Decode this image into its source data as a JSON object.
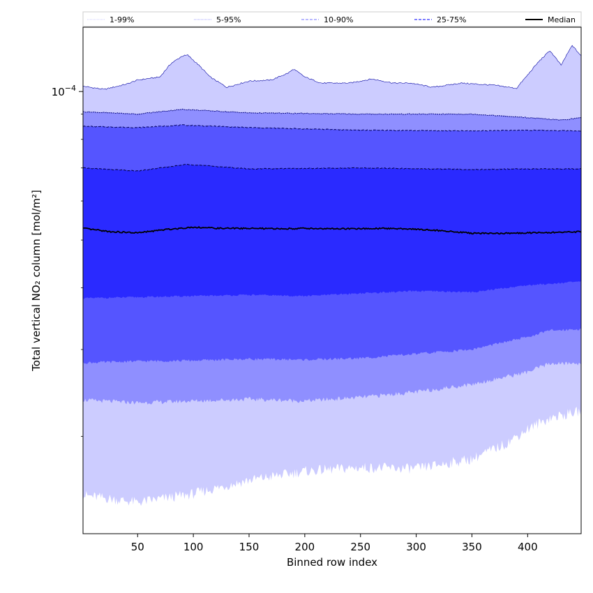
{
  "chart_data": {
    "type": "area",
    "xlabel": "Binned row index",
    "ylabel": "Total vertical NO₂ column [mol/m²]",
    "y_scale": "log",
    "xlim": [
      1,
      448
    ],
    "ylim": [
      1.27e-05,
      0.000135
    ],
    "x_ticks": [
      50,
      100,
      150,
      200,
      250,
      300,
      350,
      400
    ],
    "y_tick_label": {
      "base": "10",
      "exponent": "−4",
      "value": 0.0001
    },
    "grid": false,
    "legend_position": "top, spanning width",
    "colors": {
      "band_1_99": "#ccccff",
      "band_5_95": "#8f8fff",
      "band_10_90": "#5555ff",
      "band_25_75": "#2a2aff",
      "median": "#000000",
      "p99_line": "#0000a0",
      "p95_line": "#000080",
      "p90_line": "#000060",
      "p75_line": "#000040"
    },
    "legend": [
      {
        "label": "1-99%",
        "style": "dotted-light"
      },
      {
        "label": "5-95%",
        "style": "dotted"
      },
      {
        "label": "10-90%",
        "style": "dashed-light"
      },
      {
        "label": "25-75%",
        "style": "dashed"
      },
      {
        "label": "Median",
        "style": "solid"
      }
    ],
    "series": [
      {
        "name": "1-99%",
        "lower_x": [
          1,
          50,
          100,
          150,
          200,
          250,
          300,
          350,
          380,
          400,
          420,
          448
        ],
        "lower_y": [
          1.52e-05,
          1.47e-05,
          1.53e-05,
          1.63e-05,
          1.7e-05,
          1.73e-05,
          1.72e-05,
          1.8e-05,
          1.93e-05,
          2.07e-05,
          2.18e-05,
          2.25e-05
        ],
        "upper_x": [
          1,
          20,
          40,
          50,
          70,
          80,
          90,
          95,
          105,
          115,
          130,
          150,
          170,
          185,
          190,
          200,
          215,
          240,
          260,
          280,
          295,
          315,
          340,
          370,
          390,
          400,
          410,
          420,
          430,
          440,
          448
        ],
        "upper_y": [
          0.0001025,
          0.000101,
          0.0001035,
          0.0001055,
          0.000107,
          0.000114,
          0.000118,
          0.0001185,
          0.000113,
          0.000107,
          0.000102,
          0.000105,
          0.0001055,
          0.000109,
          0.000111,
          0.000107,
          0.000104,
          0.000104,
          0.000106,
          0.000104,
          0.000104,
          0.000102,
          0.000104,
          0.000103,
          0.0001015,
          0.000108,
          0.000115,
          0.000121,
          0.000113,
          0.000124,
          0.000118
        ]
      },
      {
        "name": "5-95%",
        "lower_x": [
          1,
          50,
          100,
          150,
          200,
          250,
          300,
          350,
          400,
          420,
          448
        ],
        "lower_y": [
          2.37e-05,
          2.34e-05,
          2.36e-05,
          2.38e-05,
          2.36e-05,
          2.4e-05,
          2.46e-05,
          2.55e-05,
          2.7e-05,
          2.81e-05,
          2.81e-05
        ],
        "upper_x": [
          1,
          50,
          90,
          150,
          250,
          350,
          400,
          430,
          448
        ],
        "upper_y": [
          9.1e-05,
          9e-05,
          9.2e-05,
          9.05e-05,
          9e-05,
          9e-05,
          8.85e-05,
          8.75e-05,
          8.85e-05
        ]
      },
      {
        "name": "10-90%",
        "lower_x": [
          1,
          50,
          100,
          150,
          200,
          250,
          300,
          350,
          400,
          420,
          448
        ],
        "lower_y": [
          2.82e-05,
          2.84e-05,
          2.85e-05,
          2.87e-05,
          2.86e-05,
          2.88e-05,
          2.94e-05,
          3e-05,
          3.18e-05,
          3.28e-05,
          3.3e-05
        ],
        "upper_x": [
          1,
          50,
          90,
          150,
          250,
          350,
          400,
          448
        ],
        "upper_y": [
          8.5e-05,
          8.45e-05,
          8.55e-05,
          8.45e-05,
          8.35e-05,
          8.32e-05,
          8.35e-05,
          8.32e-05
        ]
      },
      {
        "name": "25-75%",
        "lower_x": [
          1,
          50,
          100,
          150,
          200,
          250,
          300,
          350,
          400,
          448
        ],
        "lower_y": [
          3.81e-05,
          3.83e-05,
          3.85e-05,
          3.87e-05,
          3.85e-05,
          3.9e-05,
          3.94e-05,
          3.92e-05,
          4.05e-05,
          4.12e-05
        ],
        "upper_x": [
          1,
          50,
          95,
          150,
          250,
          350,
          400,
          448
        ],
        "upper_y": [
          7e-05,
          6.9e-05,
          7.12e-05,
          6.97e-05,
          7e-05,
          6.95e-05,
          6.97e-05,
          6.97e-05
        ]
      },
      {
        "name": "Median",
        "x": [
          1,
          25,
          50,
          75,
          100,
          125,
          150,
          175,
          200,
          225,
          250,
          275,
          300,
          325,
          350,
          375,
          400,
          425,
          448
        ],
        "y": [
          5.28e-05,
          5.2e-05,
          5.17e-05,
          5.25e-05,
          5.31e-05,
          5.28e-05,
          5.28e-05,
          5.27e-05,
          5.28e-05,
          5.27e-05,
          5.27e-05,
          5.28e-05,
          5.26e-05,
          5.22e-05,
          5.16e-05,
          5.16e-05,
          5.17e-05,
          5.18e-05,
          5.2e-05
        ]
      }
    ]
  }
}
